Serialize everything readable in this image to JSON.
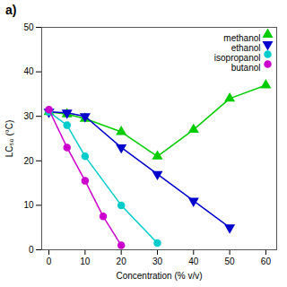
{
  "chart_data": {
    "type": "line",
    "title": "a)",
    "xlabel": "Concentration (% v/v)",
    "ylabel": "LC₅₀ (°C)",
    "xlim": [
      -2,
      63
    ],
    "ylim": [
      0,
      50
    ],
    "xticks": [
      0,
      10,
      20,
      30,
      40,
      50,
      60
    ],
    "yticks": [
      0,
      10,
      20,
      30,
      40,
      50
    ],
    "grid": false,
    "legend": "upper right",
    "series": [
      {
        "name": "methanol",
        "color": "#00cc00",
        "marker": "triangle-up",
        "x": [
          0,
          5,
          10,
          20,
          30,
          40,
          50,
          60
        ],
        "values": [
          31.0,
          30.5,
          29.5,
          26.5,
          21.0,
          27.0,
          34.0,
          37.0
        ],
        "yerr": [
          0.3,
          0.3,
          0.3,
          0.5,
          0.5,
          0.5,
          0.5,
          0.5
        ]
      },
      {
        "name": "ethanol",
        "color": "#0000cc",
        "marker": "triangle-down",
        "x": [
          0,
          5,
          10,
          20,
          30,
          40,
          50
        ],
        "values": [
          31.0,
          30.8,
          30.0,
          23.0,
          17.0,
          11.0,
          5.0
        ],
        "yerr": [
          0.3,
          0.3,
          0.3,
          0.5,
          0.5,
          0.5,
          0.5
        ]
      },
      {
        "name": "isopropanol",
        "color": "#00cccc",
        "marker": "circle",
        "x": [
          0,
          5,
          10,
          20,
          30
        ],
        "values": [
          31.0,
          28.0,
          21.0,
          10.0,
          1.5
        ],
        "yerr": [
          0.3,
          0.5,
          0.5,
          0.5,
          0.3
        ]
      },
      {
        "name": "butanol",
        "color": "#cc00cc",
        "marker": "circle",
        "x": [
          0,
          5,
          10,
          15,
          20
        ],
        "values": [
          31.5,
          23.0,
          15.5,
          7.5,
          1.0
        ],
        "yerr": [
          0.3,
          0.5,
          0.5,
          0.5,
          0.3
        ]
      }
    ]
  }
}
